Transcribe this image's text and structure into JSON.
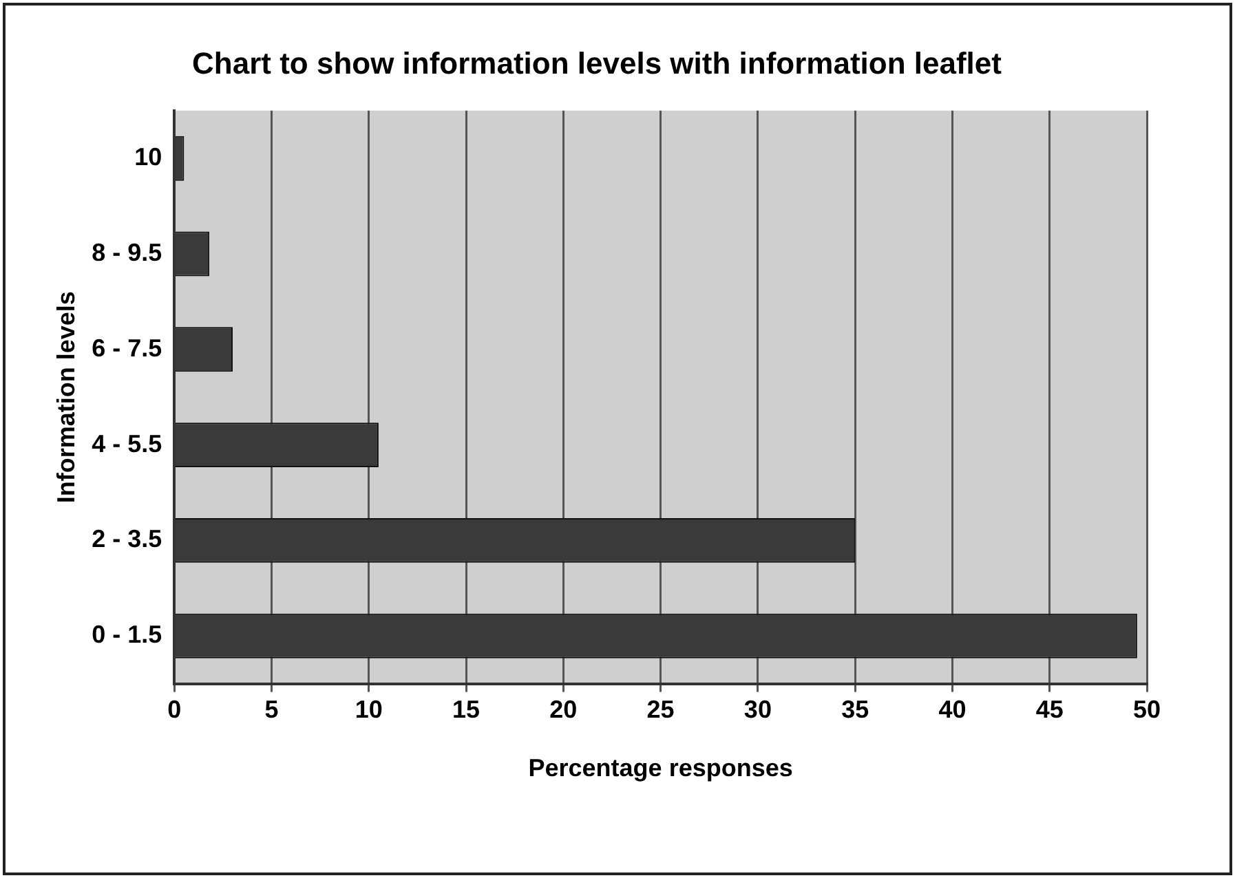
{
  "chart_data": {
    "type": "bar",
    "orientation": "horizontal",
    "title": "Chart to show information levels with information leaflet",
    "xlabel": "Percentage responses",
    "ylabel": "Information levels",
    "categories": [
      "10",
      "8 - 9.5",
      "6 - 7.5",
      "4 - 5.5",
      "2 - 3.5",
      "0 - 1.5"
    ],
    "values": [
      0.5,
      1.8,
      3,
      10.5,
      35,
      49.5
    ],
    "color": "#3a3a3a",
    "xlim": [
      0,
      50
    ],
    "xticks": [
      0,
      5,
      10,
      15,
      20,
      25,
      30,
      35,
      40,
      45,
      50
    ],
    "grid": "x",
    "legend": false
  }
}
